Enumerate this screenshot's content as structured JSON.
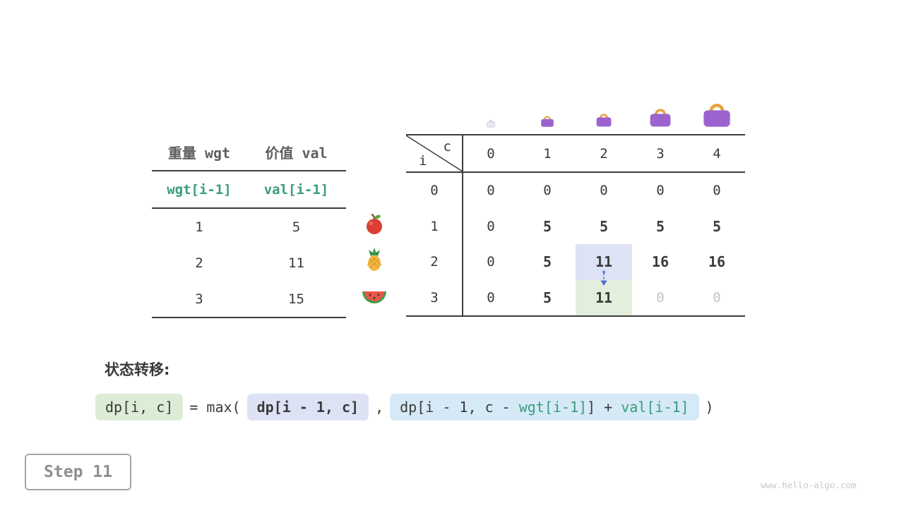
{
  "items_table": {
    "col_headers": [
      "重量 wgt",
      "价值 val"
    ],
    "code_row": [
      "wgt[i-1]",
      "val[i-1]"
    ],
    "rows": [
      {
        "wgt": "1",
        "val": "5",
        "icon": "apple"
      },
      {
        "wgt": "2",
        "val": "11",
        "icon": "pineapple"
      },
      {
        "wgt": "3",
        "val": "15",
        "icon": "watermelon"
      }
    ]
  },
  "dp_table": {
    "corner_row_label": "i",
    "corner_col_label": "c",
    "col_headers": [
      "0",
      "1",
      "2",
      "3",
      "4"
    ],
    "rows": [
      {
        "header": "0",
        "cells": [
          "0",
          "0",
          "0",
          "0",
          "0"
        ]
      },
      {
        "header": "1",
        "cells": [
          "0",
          "5",
          "5",
          "5",
          "5"
        ]
      },
      {
        "header": "2",
        "cells": [
          "0",
          "5",
          "11",
          "16",
          "16"
        ]
      },
      {
        "header": "3",
        "cells": [
          "0",
          "5",
          "11",
          "0",
          "0"
        ]
      }
    ],
    "source_cell": {
      "row": 2,
      "col": 2
    },
    "target_cell": {
      "row": 3,
      "col": 2
    },
    "dim_cells": [
      {
        "row": 3,
        "col": 3
      },
      {
        "row": 3,
        "col": 4
      }
    ],
    "capacity_icons": [
      "bag-empty-icon",
      "bag-small-icon",
      "bag-medium-icon",
      "bag-large-icon",
      "bag-xlarge-icon"
    ]
  },
  "formula": {
    "label": "状态转移:",
    "lhs": "dp[i, c]",
    "operator": "= max(",
    "arg1": "dp[i - 1, c]",
    "separator": ",",
    "arg2_prefix": "dp[i - 1, c - ",
    "arg2_wgt": "wgt[i-1]",
    "arg2_mid": "] + ",
    "arg2_val": "val[i-1]",
    "closing": ")"
  },
  "step_label": "Step 11",
  "watermark": "www.hello-algo.com",
  "colors": {
    "accent_teal": "#3a9d7c",
    "highlight_source": "#dde2f5",
    "highlight_target": "#e3efdc",
    "formula_green_bg": "#ddecd6",
    "formula_blue_bg": "#d5e9f6",
    "bag_purple": "#9c63ce",
    "bag_handle": "#e7a33c",
    "dim_text": "#c4c4c4",
    "arrow_blue": "#4a6fd4"
  }
}
